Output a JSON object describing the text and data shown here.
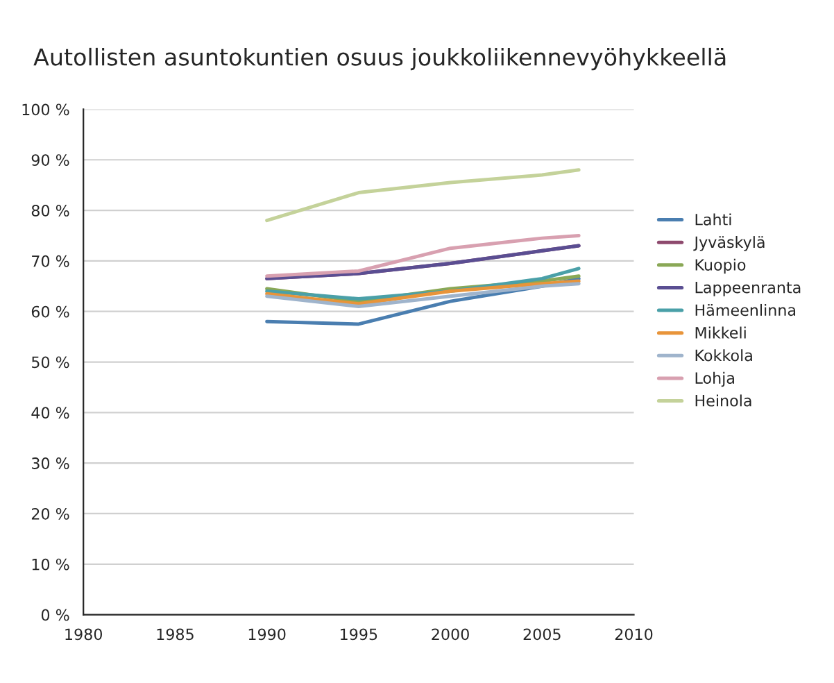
{
  "chart_data": {
    "type": "line",
    "title": "Autollisten asuntokuntien osuus joukkoliikennevyöhykkeellä",
    "xlim": [
      1980,
      2010
    ],
    "xticks": [
      1980,
      1985,
      1990,
      1995,
      2000,
      2005,
      2010
    ],
    "ylim": [
      0,
      100
    ],
    "yticks": [
      {
        "value": 0,
        "label": "0 %"
      },
      {
        "value": 10,
        "label": "10 %"
      },
      {
        "value": 20,
        "label": "20 %"
      },
      {
        "value": 30,
        "label": "30 %"
      },
      {
        "value": 40,
        "label": "40 %"
      },
      {
        "value": 50,
        "label": "50 %"
      },
      {
        "value": 60,
        "label": "60 %"
      },
      {
        "value": 70,
        "label": "70 %"
      },
      {
        "value": 80,
        "label": "80 %"
      },
      {
        "value": 90,
        "label": "90 %"
      },
      {
        "value": 100,
        "label": "100 %"
      }
    ],
    "grid": "y",
    "legend": "right",
    "x": [
      1990,
      1995,
      2000,
      2005,
      2007
    ],
    "series": [
      {
        "name": "Lahti",
        "color": "#4a7eb0",
        "values": [
          58,
          57.5,
          62,
          65,
          66.5
        ]
      },
      {
        "name": "Jyväskylä",
        "color": "#8e4a6e",
        "values": [
          66.5,
          67.5,
          69.5,
          72,
          73
        ]
      },
      {
        "name": "Kuopio",
        "color": "#8aa856",
        "values": [
          64.5,
          62,
          64.5,
          66,
          67
        ]
      },
      {
        "name": "Lappeenranta",
        "color": "#5a4e92",
        "values": [
          66.5,
          67.5,
          69.5,
          72,
          73
        ]
      },
      {
        "name": "Hämeenlinna",
        "color": "#4aa0a8",
        "values": [
          64,
          62.5,
          64,
          66.5,
          68.5
        ]
      },
      {
        "name": "Mikkeli",
        "color": "#e8943a",
        "values": [
          63.5,
          61.5,
          64,
          65.5,
          66
        ]
      },
      {
        "name": "Kokkola",
        "color": "#9fb4cc",
        "values": [
          63,
          61,
          63,
          65,
          65.5
        ]
      },
      {
        "name": "Lohja",
        "color": "#d8a0b0",
        "values": [
          67,
          68,
          72.5,
          74.5,
          75
        ]
      },
      {
        "name": "Heinola",
        "color": "#c4d29a",
        "values": [
          78,
          83.5,
          85.5,
          87,
          88
        ]
      }
    ]
  }
}
